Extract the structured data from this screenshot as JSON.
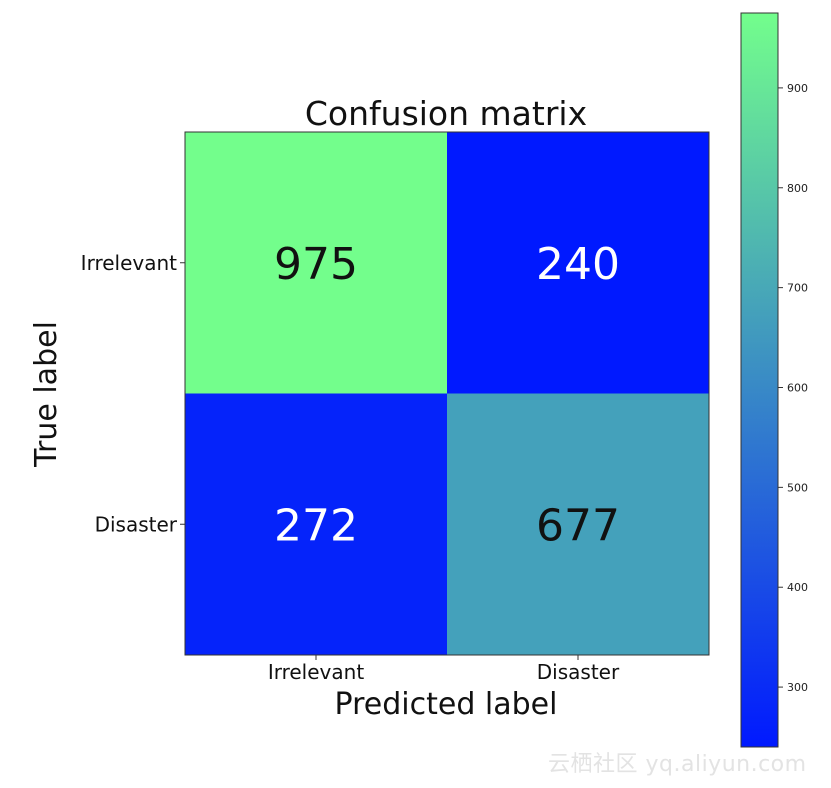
{
  "chart_data": {
    "type": "heatmap",
    "title": "Confusion matrix",
    "xlabel": "Predicted label",
    "ylabel": "True label",
    "x_categories": [
      "Irrelevant",
      "Disaster"
    ],
    "y_categories": [
      "Irrelevant",
      "Disaster"
    ],
    "values": [
      [
        975,
        240
      ],
      [
        272,
        677
      ]
    ],
    "colormap": "winter",
    "colormap_low": "#0019ff",
    "colormap_high": "#73fe8c",
    "colorbar": {
      "range": [
        240,
        975
      ],
      "ticks": [
        300,
        400,
        500,
        600,
        700,
        800,
        900
      ]
    }
  },
  "watermark": "云栖社区 yq.aliyun.com"
}
